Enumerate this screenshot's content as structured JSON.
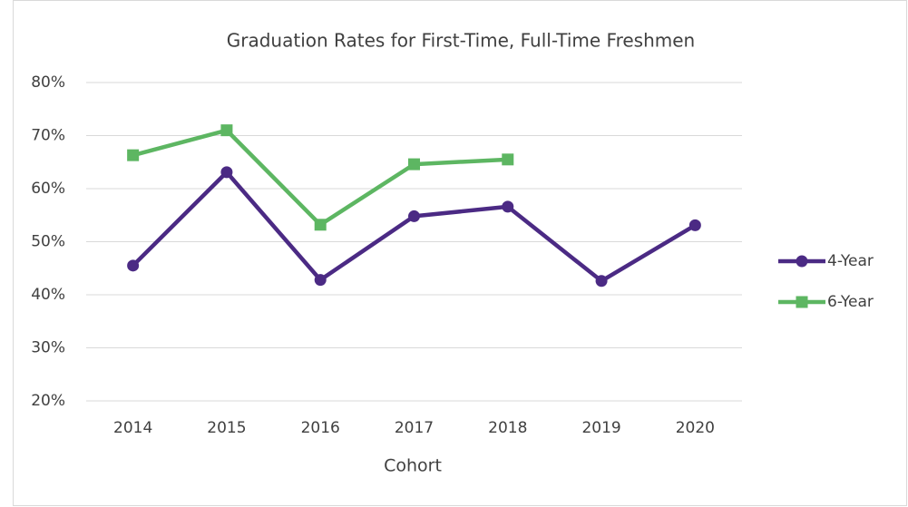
{
  "chart_data": {
    "type": "line",
    "title": "Graduation Rates for First-Time, Full-Time Freshmen",
    "x_label": "Cohort",
    "categories": [
      "2014",
      "2015",
      "2016",
      "2017",
      "2018",
      "2019",
      "2020"
    ],
    "series": [
      {
        "name": "4-Year",
        "color": "#4b2a84",
        "marker": "circle",
        "values": [
          45.5,
          63.1,
          42.8,
          54.8,
          56.6,
          42.6,
          53.1
        ]
      },
      {
        "name": "6-Year",
        "color": "#5db662",
        "marker": "square",
        "values": [
          66.3,
          71.0,
          53.2,
          64.6,
          65.5,
          null,
          null
        ]
      }
    ],
    "ylim": [
      20,
      80
    ],
    "yticks": [
      {
        "value": 20,
        "label": "20%"
      },
      {
        "value": 30,
        "label": "30%"
      },
      {
        "value": 40,
        "label": "40%"
      },
      {
        "value": 50,
        "label": "50%"
      },
      {
        "value": 60,
        "label": "60%"
      },
      {
        "value": 70,
        "label": "70%"
      },
      {
        "value": 80,
        "label": "80%"
      }
    ],
    "grid": true,
    "legend": "right"
  }
}
